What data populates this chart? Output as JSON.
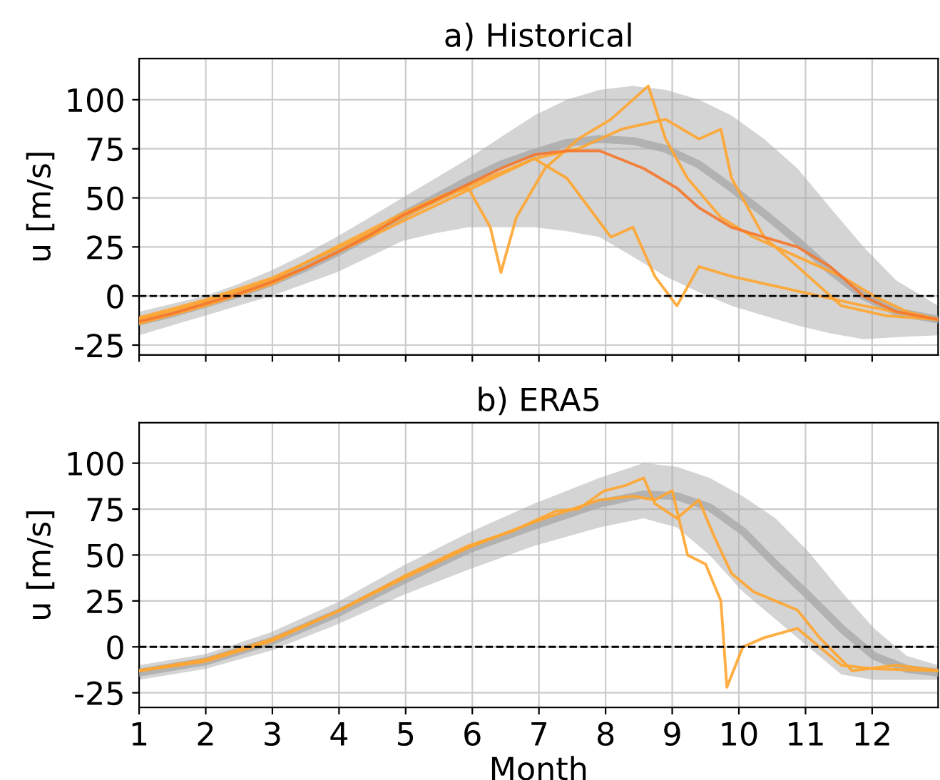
{
  "chart_data": [
    {
      "type": "line",
      "title": "a) Historical",
      "ylabel": "u [m/s]",
      "xlim": [
        1,
        12.99
      ],
      "ylim": [
        -30,
        121
      ],
      "xticks": [
        1,
        2,
        3,
        4,
        5,
        6,
        7,
        8,
        9,
        10,
        11,
        12
      ],
      "yticks": [
        -25,
        0,
        25,
        50,
        75,
        100
      ],
      "grid": true,
      "tick_labels": "y",
      "ref_lines": [
        {
          "axis": "y",
          "value": 0,
          "color": "#000000",
          "line_style": "dashed"
        }
      ],
      "series": [
        {
          "color": "#a9a9a9",
          "x": [
            1,
            1.49,
            1.99,
            2.48,
            2.98,
            3.47,
            3.96,
            4.46,
            4.95,
            5.45,
            5.94,
            6.43,
            6.93,
            7.42,
            7.91,
            8.41,
            8.9,
            9.4,
            9.89,
            10.38,
            10.88,
            11.37,
            11.87,
            12.36,
            12.99
          ],
          "values": [
            -13,
            -9,
            -4,
            1,
            7,
            14,
            22,
            31,
            41,
            50,
            59,
            67,
            73,
            78,
            80,
            79,
            75,
            67,
            55,
            42,
            28,
            13,
            0,
            -8,
            -12
          ],
          "lower": [
            -20,
            -15,
            -10,
            -5,
            0,
            6,
            12,
            20,
            28,
            32,
            35,
            35,
            35,
            33,
            30,
            20,
            10,
            2,
            -5,
            -10,
            -15,
            -19,
            -22,
            -21,
            -20
          ],
          "upper": [
            -8,
            -4,
            0,
            6,
            13,
            21,
            30,
            40,
            50,
            60,
            70,
            81,
            92,
            100,
            105,
            107,
            105,
            100,
            92,
            80,
            65,
            45,
            25,
            8,
            -5
          ]
        },
        {
          "color": "#ffa530",
          "x": [
            1,
            1.99,
            2.98,
            3.96,
            4.95,
            5.61,
            5.94,
            6.27,
            6.43,
            6.66,
            7.09,
            7.59,
            8.08,
            8.41,
            8.64,
            8.9,
            9.23,
            9.73,
            10.22,
            10.88,
            11.54,
            12.03,
            12.52,
            12.99
          ],
          "values": [
            -12,
            -3,
            8,
            25,
            42,
            52,
            55,
            35,
            12,
            40,
            65,
            80,
            90,
            100,
            107,
            80,
            60,
            40,
            30,
            20,
            10,
            0,
            -8,
            -12
          ]
        },
        {
          "color": "#ffa530",
          "x": [
            1,
            1.99,
            2.98,
            3.96,
            4.95,
            5.94,
            6.93,
            7.59,
            8.24,
            8.9,
            9.4,
            9.73,
            9.89,
            10.38,
            10.88,
            11.54,
            12.2,
            12.99
          ],
          "values": [
            -11,
            -2,
            9,
            24,
            40,
            56,
            70,
            75,
            85,
            90,
            80,
            85,
            60,
            30,
            15,
            -5,
            -10,
            -12
          ]
        },
        {
          "color": "#ffa530",
          "x": [
            1,
            1.99,
            2.98,
            3.96,
            4.95,
            5.94,
            6.93,
            7.42,
            7.75,
            8.08,
            8.41,
            8.74,
            9.07,
            9.4,
            9.89,
            10.55,
            11.21,
            11.87,
            12.99
          ],
          "values": [
            -14,
            -5,
            6,
            22,
            38,
            54,
            70,
            60,
            45,
            30,
            35,
            10,
            -5,
            15,
            10,
            5,
            0,
            -5,
            -12
          ]
        },
        {
          "color": "#f5772c",
          "x": [
            1,
            1.49,
            1.99,
            2.48,
            2.98,
            3.47,
            3.96,
            4.46,
            4.95,
            5.45,
            5.94,
            6.43,
            6.93,
            7.42,
            7.91,
            8.57,
            9.07,
            9.4,
            9.89,
            10.38,
            10.88,
            11.37,
            11.87,
            12.36,
            12.99
          ],
          "values": [
            -13,
            -9,
            -4,
            1,
            7,
            14,
            22,
            31,
            41,
            49,
            57,
            65,
            72,
            74,
            74,
            65,
            55,
            45,
            35,
            30,
            25,
            15,
            0,
            -8,
            -12
          ]
        }
      ]
    },
    {
      "type": "line",
      "title": "b) ERA5",
      "xlabel": "Month",
      "ylabel": "u [m/s]",
      "xlim": [
        1,
        12.99
      ],
      "ylim": [
        -33,
        122
      ],
      "xticks": [
        1,
        2,
        3,
        4,
        5,
        6,
        7,
        8,
        9,
        10,
        11,
        12
      ],
      "yticks": [
        -25,
        0,
        25,
        50,
        75,
        100
      ],
      "grid": true,
      "ref_lines": [
        {
          "axis": "y",
          "value": 0,
          "color": "#000000",
          "line_style": "dashed"
        }
      ],
      "series": [
        {
          "color": "#a9a9a9",
          "x": [
            1,
            1.99,
            2.98,
            3.96,
            4.95,
            5.94,
            6.93,
            7.91,
            8.57,
            9.07,
            9.56,
            10.06,
            10.55,
            11.04,
            11.54,
            12.03,
            12.52,
            12.99
          ],
          "values": [
            -14,
            -8,
            3,
            18,
            36,
            53,
            66,
            78,
            83,
            82,
            76,
            63,
            45,
            28,
            10,
            -5,
            -12,
            -14
          ],
          "lower": [
            -18,
            -12,
            -2,
            12,
            28,
            42,
            55,
            65,
            70,
            65,
            50,
            30,
            15,
            0,
            -15,
            -18,
            -18,
            -18
          ],
          "upper": [
            -10,
            -4,
            8,
            24,
            44,
            62,
            78,
            92,
            100,
            98,
            92,
            82,
            70,
            52,
            30,
            10,
            -5,
            -10
          ]
        },
        {
          "color": "#ffa530",
          "x": [
            1,
            1.99,
            2.98,
            3.96,
            4.95,
            5.94,
            6.6,
            7.26,
            7.59,
            7.98,
            8.31,
            8.57,
            8.74,
            9.07,
            9.4,
            9.63,
            9.89,
            10.22,
            10.55,
            10.88,
            11.21,
            11.7,
            12.36,
            12.99
          ],
          "values": [
            -13,
            -8,
            3,
            19,
            38,
            55,
            63,
            74,
            75,
            85,
            88,
            92,
            78,
            70,
            80,
            60,
            40,
            30,
            25,
            20,
            5,
            -13,
            -10,
            -13
          ]
        },
        {
          "color": "#ffa530",
          "x": [
            1,
            1.99,
            2.98,
            3.96,
            4.95,
            5.94,
            6.93,
            7.91,
            8.41,
            8.74,
            9.0,
            9.23,
            9.5,
            9.73,
            9.82,
            10.06,
            10.38,
            10.88,
            11.21,
            11.54,
            12.03,
            12.99
          ],
          "values": [
            -13,
            -7,
            4,
            19,
            37,
            54,
            68,
            80,
            82,
            80,
            85,
            50,
            45,
            25,
            -22,
            0,
            5,
            10,
            0,
            -10,
            -12,
            -13
          ]
        }
      ]
    }
  ]
}
